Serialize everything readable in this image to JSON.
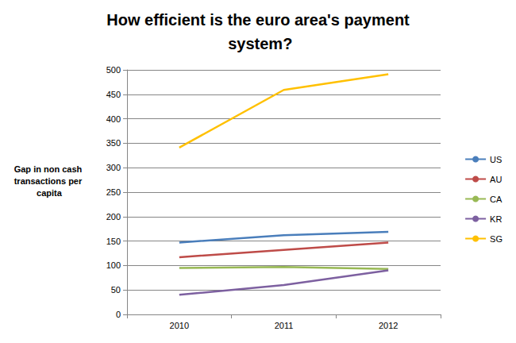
{
  "chart_data": {
    "type": "line",
    "title": "How efficient is the euro area's payment system?",
    "y_label": "Gap in non cash transactions per capita",
    "categories": [
      "2010",
      "2011",
      "2012"
    ],
    "series": [
      {
        "name": "US",
        "color": "#4a7ebb",
        "values": [
          147,
          162,
          169
        ]
      },
      {
        "name": "AU",
        "color": "#be4b48",
        "values": [
          117,
          132,
          147
        ]
      },
      {
        "name": "CA",
        "color": "#98b954",
        "values": [
          95,
          97,
          93
        ]
      },
      {
        "name": "KR",
        "color": "#7d60a0",
        "values": [
          40,
          60,
          90
        ]
      },
      {
        "name": "SG",
        "color": "#ffc000",
        "values": [
          341,
          459,
          491
        ]
      }
    ],
    "ylim": [
      0,
      500
    ],
    "yticks": [
      0,
      50,
      100,
      150,
      200,
      250,
      300,
      350,
      400,
      450,
      500
    ],
    "grid": true,
    "legend": "right"
  }
}
